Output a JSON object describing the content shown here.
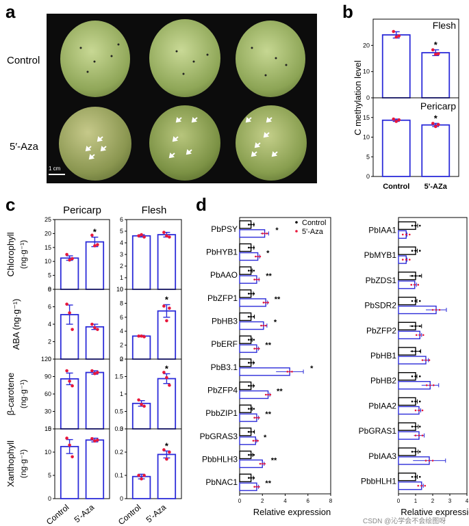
{
  "panel_letters": {
    "a": "a",
    "b": "b",
    "c": "c",
    "d": "d"
  },
  "panel_a": {
    "row_labels": [
      "Control",
      "5′-Aza"
    ],
    "scale_bar": "1 cm"
  },
  "chart_data": [
    {
      "id": "b",
      "type": "bar",
      "ylabel": "C methylation level",
      "categories": [
        "Control",
        "5'-AZa"
      ],
      "subplots": [
        {
          "title": "Flesh",
          "values": [
            24.0,
            17.2
          ],
          "errors": [
            1.2,
            1.1
          ],
          "ylim": [
            0,
            30
          ],
          "yticks": [
            0,
            10,
            20
          ],
          "significance": [
            false,
            true
          ],
          "points": [
            [
              25.3,
              23.2,
              23.6
            ],
            [
              18.3,
              16.6,
              16.8
            ]
          ]
        },
        {
          "title": "Pericarp",
          "values": [
            14.3,
            13.1
          ],
          "errors": [
            0.3,
            0.4
          ],
          "ylim": [
            0,
            20
          ],
          "yticks": [
            0,
            5,
            10,
            15
          ],
          "significance": [
            false,
            true
          ],
          "points": [
            [
              14.6,
              14.0,
              14.4
            ],
            [
              13.5,
              12.7,
              13.2
            ]
          ]
        }
      ]
    },
    {
      "id": "c",
      "type": "bar",
      "categories": [
        "Control",
        "5'-Aza"
      ],
      "column_titles": [
        "Pericarp",
        "Flesh"
      ],
      "rows": [
        {
          "ylabel": "Chlorophyll",
          "unit": "(ng·g⁻¹)",
          "pericarp": {
            "values": [
              11.2,
              17.0
            ],
            "errors": [
              0.8,
              1.7
            ],
            "ylim": [
              0,
              25
            ],
            "yticks": [
              0,
              5,
              10,
              15,
              20,
              25
            ],
            "significance": [
              false,
              true
            ],
            "points": [
              [
                12.5,
                10.5,
                11.0
              ],
              [
                19.4,
                15.6,
                16.0
              ]
            ]
          },
          "flesh": {
            "values": [
              4.6,
              4.7
            ],
            "errors": [
              0.1,
              0.2
            ],
            "ylim": [
              0,
              6
            ],
            "yticks": [
              0,
              1,
              2,
              3,
              4,
              5,
              6
            ],
            "significance": [
              false,
              false
            ],
            "points": [
              [
                4.6,
                4.7,
                4.5
              ],
              [
                4.9,
                4.6,
                4.5
              ]
            ]
          }
        },
        {
          "ylabel": "ABA (ng·g⁻¹)",
          "unit": "",
          "pericarp": {
            "values": [
              5.1,
              3.7
            ],
            "errors": [
              1.1,
              0.3
            ],
            "ylim": [
              0,
              8
            ],
            "yticks": [
              0,
              2,
              4,
              6,
              8
            ],
            "significance": [
              false,
              false
            ],
            "points": [
              [
                6.3,
                5.3,
                3.4
              ],
              [
                4.0,
                3.6,
                3.4
              ]
            ]
          },
          "flesh": {
            "values": [
              3.3,
              6.9
            ],
            "errors": [
              0.1,
              0.9
            ],
            "ylim": [
              0,
              10
            ],
            "yticks": [
              0,
              2,
              4,
              6,
              8,
              10
            ],
            "significance": [
              false,
              true
            ],
            "points": [
              [
                3.3,
                3.3,
                3.2
              ],
              [
                7.6,
                5.5,
                7.3
              ]
            ]
          }
        },
        {
          "ylabel": "β-carotene",
          "unit": "(ng·g⁻¹)",
          "pericarp": {
            "values": [
              86,
              97
            ],
            "errors": [
              10,
              3
            ],
            "ylim": [
              0,
              120
            ],
            "yticks": [
              0,
              30,
              60,
              90,
              120
            ],
            "significance": [
              false,
              false
            ],
            "points": [
              [
                100,
                82,
                74
              ],
              [
                100,
                95,
                97
              ]
            ]
          },
          "flesh": {
            "values": [
              0.73,
              1.44
            ],
            "errors": [
              0.08,
              0.14
            ],
            "ylim": [
              0,
              2
            ],
            "yticks": [
              0,
              0.5,
              1.0,
              1.5,
              2.0
            ],
            "significance": [
              false,
              true
            ],
            "points": [
              [
                0.83,
                0.7,
                0.65
              ],
              [
                1.62,
                1.47,
                1.25
              ]
            ]
          }
        },
        {
          "ylabel": "Xanthophyll",
          "unit": "(ng·g⁻¹)",
          "pericarp": {
            "values": [
              11.2,
              12.6
            ],
            "errors": [
              1.5,
              0.4
            ],
            "ylim": [
              0,
              15
            ],
            "yticks": [
              0,
              5,
              10,
              15
            ],
            "significance": [
              false,
              false
            ],
            "points": [
              [
                13.0,
                11.5,
                9.0
              ],
              [
                12.9,
                12.4,
                12.6
              ]
            ]
          },
          "flesh": {
            "values": [
              0.095,
              0.19
            ],
            "errors": [
              0.01,
              0.015
            ],
            "ylim": [
              0,
              0.3
            ],
            "yticks": [
              0,
              0.1,
              0.2,
              0.3
            ],
            "significance": [
              false,
              true
            ],
            "points": [
              [
                0.1,
                0.085,
                0.1
              ],
              [
                0.21,
                0.17,
                0.2
              ]
            ]
          }
        }
      ]
    },
    {
      "id": "d",
      "type": "bar",
      "orientation": "horizontal",
      "xlabel": "Relative expression",
      "legend": [
        {
          "name": "Control",
          "color": "#000000"
        },
        {
          "name": "5'-Aza",
          "color": "#e8173b"
        }
      ],
      "groups": [
        {
          "genes": [
            "PbPSY",
            "PbHYB1",
            "PbAAO",
            "PbZFP1",
            "PbHB3",
            "PbERF",
            "PbB3.1",
            "PbZFP4",
            "PbbZIP1",
            "PbGRAS3",
            "PbbHLH3",
            "PbNAC1"
          ],
          "xlim": [
            0,
            8
          ],
          "xticks": [
            0,
            2,
            4,
            6,
            8
          ],
          "control": [
            1,
            1,
            1,
            1,
            1,
            1,
            1,
            1,
            1,
            1,
            1,
            1
          ],
          "control_err": [
            0.25,
            0.25,
            0.1,
            0.2,
            0.3,
            0.1,
            0.2,
            0.2,
            0.1,
            0.3,
            0.15,
            0.2
          ],
          "aza": [
            2.2,
            1.6,
            1.5,
            2.3,
            2.1,
            1.5,
            4.4,
            2.5,
            1.5,
            1.4,
            2.0,
            1.5
          ],
          "aza_err": [
            0.35,
            0.15,
            0.2,
            0.15,
            0.3,
            0.15,
            1.2,
            0.15,
            0.15,
            0.1,
            0.15,
            0.15
          ],
          "stars": [
            "*",
            "*",
            "**",
            "**",
            "*",
            "**",
            "*",
            "**",
            "**",
            "*",
            "**",
            "**"
          ]
        },
        {
          "genes": [
            "PbIAA1",
            "PbMYB1",
            "PbZDS1",
            "PbSDR2",
            "PbZFP2",
            "PbHB1",
            "PbHB2",
            "PbIAA2",
            "PbGRAS1",
            "PbIAA3",
            "PbbHLH1"
          ],
          "xlim": [
            0,
            4
          ],
          "xticks": [
            0,
            1,
            2,
            3,
            4
          ],
          "control": [
            1,
            1,
            1,
            1,
            1,
            1,
            1,
            1,
            1,
            1,
            1
          ],
          "control_err": [
            0.12,
            0.1,
            0.35,
            0.08,
            0.35,
            0.3,
            0.08,
            0.1,
            0.15,
            0.15,
            0.1
          ],
          "aza": [
            0.45,
            0.45,
            0.95,
            2.2,
            1.25,
            1.6,
            1.85,
            1.2,
            1.2,
            1.8,
            1.35
          ],
          "aza_err": [
            0.05,
            0.05,
            0.1,
            0.6,
            0.1,
            0.15,
            0.5,
            0.1,
            0.3,
            0.95,
            0.1
          ],
          "stars": [
            "",
            "",
            "",
            "",
            "",
            "",
            "",
            "",
            "",
            "",
            ""
          ]
        }
      ]
    }
  ],
  "watermark": "CSDN @沁学会不会绘图呀"
}
